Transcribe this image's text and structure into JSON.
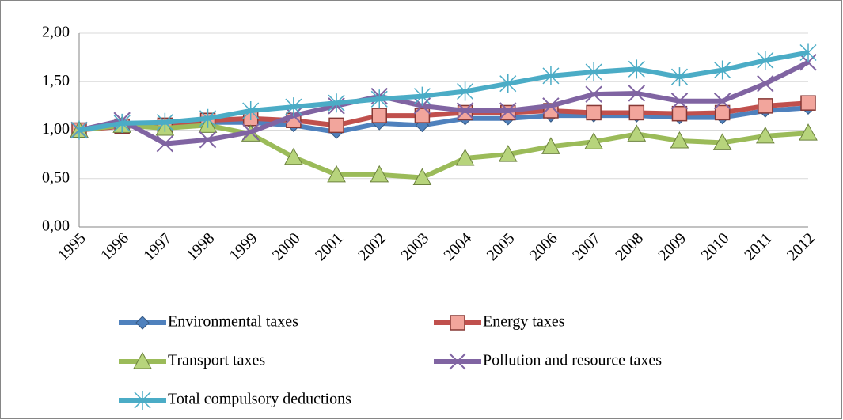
{
  "chart_data": {
    "type": "line",
    "categories": [
      "1995",
      "1996",
      "1997",
      "1998",
      "1999",
      "2000",
      "2001",
      "2002",
      "2003",
      "2004",
      "2005",
      "2006",
      "2007",
      "2008",
      "2009",
      "2010",
      "2011",
      "2012"
    ],
    "ylim": [
      0,
      2
    ],
    "yticks": [
      {
        "value": 0,
        "label": "0,00"
      },
      {
        "value": 0.5,
        "label": "0,50"
      },
      {
        "value": 1,
        "label": "1,00"
      },
      {
        "value": 1.5,
        "label": "1,50"
      },
      {
        "value": 2,
        "label": "2,00"
      }
    ],
    "grid": true,
    "legend": "bottom",
    "series": [
      {
        "name": "Environmental taxes",
        "color": "#4f81bd",
        "marker": "diamond",
        "values": [
          1.0,
          1.05,
          1.05,
          1.08,
          1.08,
          1.05,
          0.98,
          1.07,
          1.05,
          1.12,
          1.12,
          1.15,
          1.15,
          1.15,
          1.13,
          1.13,
          1.2,
          1.23
        ]
      },
      {
        "name": "Energy taxes",
        "color": "#c0504d",
        "marker": "square",
        "values": [
          1.0,
          1.04,
          1.05,
          1.1,
          1.12,
          1.1,
          1.05,
          1.15,
          1.15,
          1.18,
          1.18,
          1.2,
          1.18,
          1.18,
          1.17,
          1.18,
          1.25,
          1.28
        ]
      },
      {
        "name": "Transport taxes",
        "color": "#9bbb59",
        "marker": "triangle",
        "values": [
          1.0,
          1.05,
          1.02,
          1.05,
          0.96,
          0.72,
          0.54,
          0.54,
          0.51,
          0.71,
          0.75,
          0.83,
          0.88,
          0.96,
          0.89,
          0.87,
          0.94,
          0.97
        ]
      },
      {
        "name": "Pollution and resource taxes",
        "color": "#8064a2",
        "marker": "x",
        "values": [
          1.0,
          1.1,
          0.86,
          0.9,
          0.98,
          1.15,
          1.25,
          1.35,
          1.25,
          1.2,
          1.2,
          1.25,
          1.37,
          1.38,
          1.3,
          1.3,
          1.48,
          1.7
        ]
      },
      {
        "name": "Total compulsory deductions",
        "color": "#4bacc6",
        "marker": "star",
        "values": [
          1.0,
          1.07,
          1.08,
          1.12,
          1.2,
          1.24,
          1.28,
          1.32,
          1.35,
          1.4,
          1.48,
          1.56,
          1.6,
          1.63,
          1.55,
          1.62,
          1.72,
          1.8
        ]
      }
    ]
  }
}
